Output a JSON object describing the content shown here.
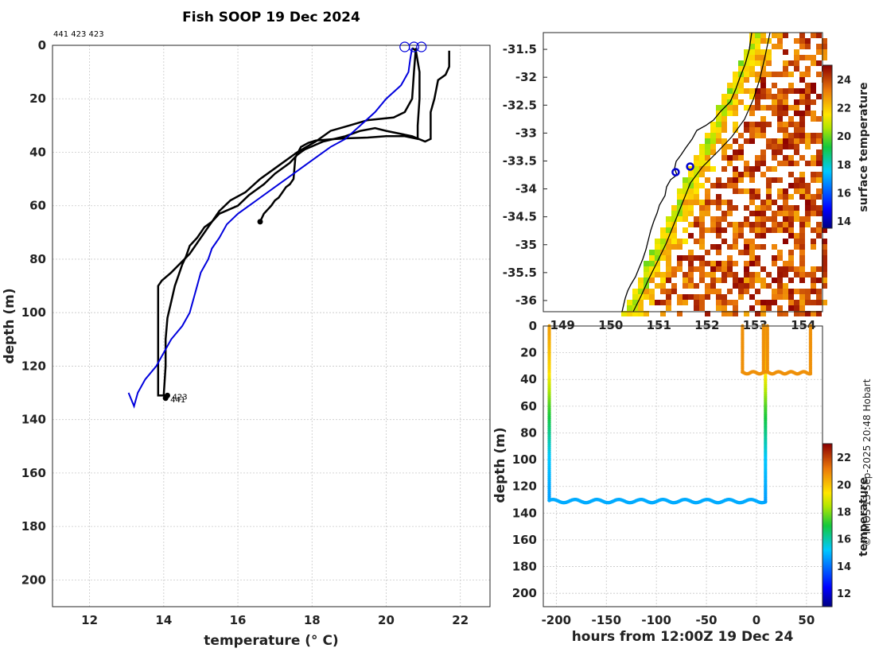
{
  "colors": {
    "profile_black": "#000000",
    "profile_blue": "#0000dd",
    "land": "#ffffff",
    "coast": "#000000"
  },
  "left_panel": {
    "title": "Fish SOOP 19 Dec 2024",
    "ids_label": "441 423 423",
    "xlabel": "temperature (° C)",
    "ylabel": "depth (m)"
  },
  "chart_data": [
    {
      "type": "line",
      "title": "Fish SOOP 19 Dec 2024",
      "xlabel": "temperature (° C)",
      "ylabel": "depth (m)",
      "xlim": [
        11,
        22.8
      ],
      "ylim": [
        0,
        210
      ],
      "y_reversed": true,
      "xticks": [
        12,
        14,
        16,
        18,
        20,
        22
      ],
      "yticks": [
        0,
        20,
        40,
        60,
        80,
        100,
        120,
        140,
        160,
        180,
        200
      ],
      "grid": true,
      "series": [
        {
          "name": "441",
          "color": "black",
          "end_label": "441",
          "points": [
            [
              20.8,
              1
            ],
            [
              20.75,
              10
            ],
            [
              20.7,
              20
            ],
            [
              20.5,
              25
            ],
            [
              20.2,
              27
            ],
            [
              19.5,
              28
            ],
            [
              19,
              30
            ],
            [
              18.5,
              32
            ],
            [
              18.1,
              36
            ],
            [
              17.6,
              40
            ],
            [
              17.1,
              45
            ],
            [
              16.6,
              50
            ],
            [
              16.2,
              55
            ],
            [
              15.8,
              58
            ],
            [
              15.5,
              62
            ],
            [
              15.3,
              66
            ],
            [
              15.1,
              68
            ],
            [
              14.9,
              72
            ],
            [
              14.7,
              75
            ],
            [
              14.6,
              79
            ],
            [
              14.5,
              82
            ],
            [
              14.4,
              86
            ],
            [
              14.3,
              90
            ],
            [
              14.2,
              96
            ],
            [
              14.1,
              102
            ],
            [
              14.05,
              110
            ],
            [
              14.05,
              120
            ],
            [
              14.0,
              131
            ],
            [
              14.05,
              132
            ]
          ]
        },
        {
          "name": "423a",
          "color": "black",
          "end_label": "423",
          "points": [
            [
              21.7,
              2
            ],
            [
              21.7,
              8
            ],
            [
              21.6,
              11
            ],
            [
              21.4,
              13
            ],
            [
              21.3,
              20
            ],
            [
              21.2,
              25
            ],
            [
              21.2,
              35
            ],
            [
              21.05,
              36
            ],
            [
              20.7,
              34
            ],
            [
              20.0,
              32
            ],
            [
              19.7,
              31
            ],
            [
              19.3,
              32
            ],
            [
              18.9,
              34
            ],
            [
              18.3,
              36
            ],
            [
              17.8,
              39
            ],
            [
              17.6,
              41
            ],
            [
              17.4,
              44
            ],
            [
              17.0,
              48
            ],
            [
              16.7,
              52
            ],
            [
              16.3,
              56
            ],
            [
              16.0,
              60
            ],
            [
              15.5,
              63
            ],
            [
              15.3,
              66
            ],
            [
              15.1,
              70
            ],
            [
              14.7,
              78
            ],
            [
              14.2,
              85
            ],
            [
              13.95,
              88
            ],
            [
              13.85,
              90
            ],
            [
              13.85,
              100
            ],
            [
              13.85,
              120
            ],
            [
              13.85,
              131
            ],
            [
              14.1,
              131
            ]
          ]
        },
        {
          "name": "423b",
          "color": "black",
          "end_label": "",
          "points": [
            [
              20.7,
              1
            ],
            [
              20.8,
              2
            ],
            [
              20.9,
              10
            ],
            [
              20.9,
              20
            ],
            [
              20.85,
              30
            ],
            [
              20.85,
              35
            ],
            [
              20.5,
              34
            ],
            [
              20.0,
              34
            ],
            [
              19.5,
              34.5
            ],
            [
              18.9,
              34.8
            ],
            [
              18.5,
              35.2
            ],
            [
              18.1,
              35.6
            ],
            [
              17.9,
              36.5
            ],
            [
              17.7,
              38
            ],
            [
              17.55,
              42
            ],
            [
              17.5,
              50
            ],
            [
              17.4,
              52
            ],
            [
              17.3,
              53
            ],
            [
              17.2,
              55
            ],
            [
              17.1,
              57
            ],
            [
              17.0,
              58
            ],
            [
              16.9,
              60
            ],
            [
              16.7,
              63
            ],
            [
              16.6,
              66
            ]
          ]
        },
        {
          "name": "xbt",
          "color": "blue",
          "end_label": "",
          "points": [
            [
              20.7,
              1
            ],
            [
              20.65,
              5
            ],
            [
              20.6,
              10
            ],
            [
              20.4,
              15
            ],
            [
              20.0,
              20
            ],
            [
              19.7,
              25
            ],
            [
              19.3,
              30
            ],
            [
              18.9,
              35
            ],
            [
              18.5,
              38
            ],
            [
              18.0,
              43
            ],
            [
              17.5,
              48
            ],
            [
              17.0,
              53
            ],
            [
              16.5,
              58
            ],
            [
              16.0,
              63
            ],
            [
              15.7,
              67
            ],
            [
              15.5,
              72
            ],
            [
              15.3,
              76
            ],
            [
              15.2,
              80
            ],
            [
              15.0,
              85
            ],
            [
              14.9,
              90
            ],
            [
              14.7,
              100
            ],
            [
              14.5,
              105
            ],
            [
              14.2,
              110
            ],
            [
              13.8,
              120
            ],
            [
              13.5,
              125
            ],
            [
              13.3,
              130
            ],
            [
              13.2,
              135
            ],
            [
              13.05,
              130
            ]
          ]
        }
      ],
      "markers": [
        [
          20.5,
          0
        ],
        [
          20.75,
          0
        ],
        [
          20.95,
          0
        ]
      ]
    },
    {
      "type": "heatmap",
      "title": "",
      "x_ticks": [
        "149",
        "150",
        "151",
        "152",
        "153",
        "154"
      ],
      "y_ticks": [
        "-31.5",
        "-32",
        "-32.5",
        "-33",
        "-33.5",
        "-34",
        "-34.5",
        "-35",
        "-35.5",
        "-36"
      ],
      "xlim": [
        148.6,
        154.4
      ],
      "ylim": [
        -36.2,
        -31.2
      ],
      "colorbar": {
        "label": "surface temperature",
        "range": [
          13.5,
          25
        ],
        "ticks": [
          14,
          16,
          18,
          20,
          22,
          24
        ]
      },
      "stations": [
        [
          151.35,
          -33.7
        ],
        [
          151.65,
          -33.6
        ]
      ]
    },
    {
      "type": "scatter",
      "xlabel": "hours from 12:00Z 19 Dec 24",
      "ylabel": "depth (m)",
      "xlim": [
        -213,
        66
      ],
      "ylim": [
        0,
        210
      ],
      "y_reversed": true,
      "xticks": [
        -200,
        -150,
        -100,
        -50,
        0,
        50
      ],
      "yticks": [
        0,
        20,
        40,
        60,
        80,
        100,
        120,
        140,
        160,
        180,
        200
      ],
      "colorbar": {
        "label": "temperature",
        "range": [
          11,
          23
        ],
        "ticks": [
          12,
          14,
          16,
          18,
          20,
          22
        ]
      }
    }
  ],
  "map_panel": {
    "colorbar_label": "surface temperature"
  },
  "timeseries_panel": {
    "xlabel": "hours from 12:00Z 19 Dec 24",
    "ylabel": "depth (m)",
    "colorbar_label": "temperature"
  },
  "credit": "© IMOS 13-Sep-2025 20:48 Hobart"
}
